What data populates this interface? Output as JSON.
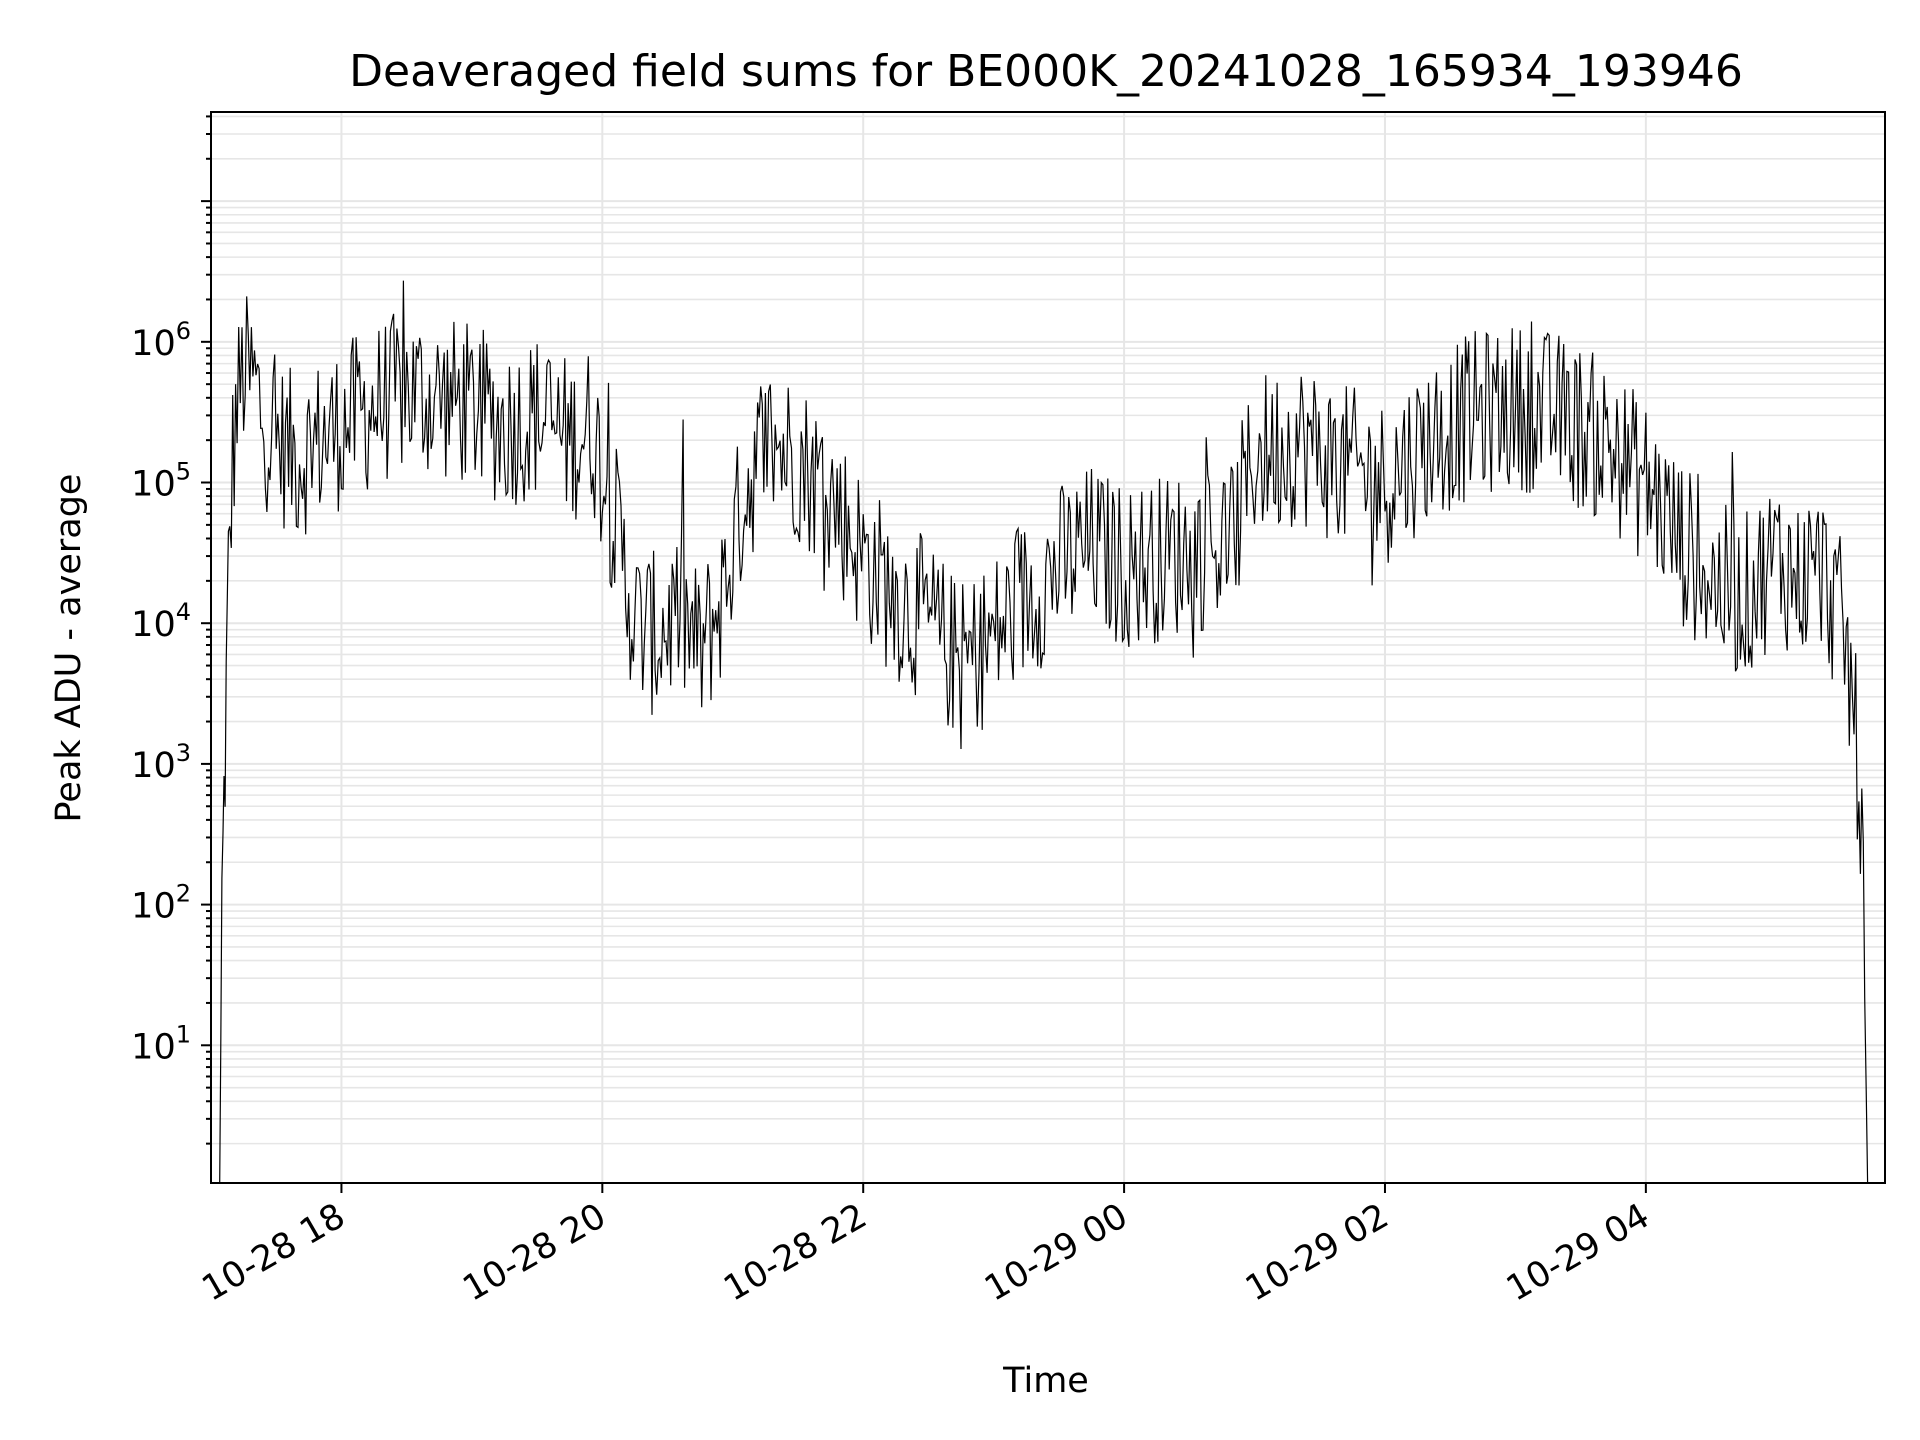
{
  "chart_data": {
    "type": "line",
    "title": "Deaveraged field sums for BE000K_20241028_165934_193946",
    "xlabel": "Time",
    "ylabel": "Peak ADU - average",
    "yscale": "log",
    "grid": true,
    "line_color": "#000000",
    "grid_color": "#e6e6e6",
    "xlim": [
      "2024-10-28 17:00",
      "2024-10-29 05:50"
    ],
    "ylim": [
      1.05,
      43000000
    ],
    "x_ticks": [
      {
        "value": "2024-10-28 18:00",
        "label": "10-28 18"
      },
      {
        "value": "2024-10-28 20:00",
        "label": "10-28 20"
      },
      {
        "value": "2024-10-28 22:00",
        "label": "10-28 22"
      },
      {
        "value": "2024-10-29 00:00",
        "label": "10-29 00"
      },
      {
        "value": "2024-10-29 02:00",
        "label": "10-29 02"
      },
      {
        "value": "2024-10-29 04:00",
        "label": "10-29 04"
      }
    ],
    "y_ticks": [
      {
        "value": 10,
        "base": "10",
        "exp": "1"
      },
      {
        "value": 100,
        "base": "10",
        "exp": "2"
      },
      {
        "value": 1000,
        "base": "10",
        "exp": "3"
      },
      {
        "value": 10000,
        "base": "10",
        "exp": "4"
      },
      {
        "value": 100000,
        "base": "10",
        "exp": "5"
      },
      {
        "value": 1000000,
        "base": "10",
        "exp": "6"
      }
    ],
    "series": [
      {
        "x": [
          "2024-10-28 17:04",
          "2024-10-28 17:05",
          "2024-10-28 17:06",
          "2024-10-28 17:07",
          "2024-10-28 17:08",
          "2024-10-28 17:10",
          "2024-10-28 17:12",
          "2024-10-28 17:15",
          "2024-10-28 17:20",
          "2024-10-28 17:25",
          "2024-10-28 17:30",
          "2024-10-28 17:40",
          "2024-10-28 17:50",
          "2024-10-28 18:00",
          "2024-10-28 18:15",
          "2024-10-28 18:30",
          "2024-10-28 18:45",
          "2024-10-28 19:00",
          "2024-10-28 19:15",
          "2024-10-28 19:30",
          "2024-10-28 19:45",
          "2024-10-28 19:55",
          "2024-10-28 20:05",
          "2024-10-28 20:15",
          "2024-10-28 20:25",
          "2024-10-28 20:35",
          "2024-10-28 20:45",
          "2024-10-28 20:55",
          "2024-10-28 21:05",
          "2024-10-28 21:15",
          "2024-10-28 21:30",
          "2024-10-28 21:45",
          "2024-10-28 22:00",
          "2024-10-28 22:15",
          "2024-10-28 22:30",
          "2024-10-28 22:45",
          "2024-10-28 23:00",
          "2024-10-28 23:15",
          "2024-10-28 23:30",
          "2024-10-28 23:45",
          "2024-10-29 00:00",
          "2024-10-29 00:20",
          "2024-10-29 00:40",
          "2024-10-29 00:50",
          "2024-10-29 01:00",
          "2024-10-29 01:20",
          "2024-10-29 01:40",
          "2024-10-29 02:00",
          "2024-10-29 02:20",
          "2024-10-29 02:40",
          "2024-10-29 03:00",
          "2024-10-29 03:20",
          "2024-10-29 03:40",
          "2024-10-29 04:00",
          "2024-10-29 04:15",
          "2024-10-29 04:30",
          "2024-10-29 04:45",
          "2024-10-29 05:00",
          "2024-10-29 05:10",
          "2024-10-29 05:20",
          "2024-10-29 05:30",
          "2024-10-29 05:35",
          "2024-10-29 05:38",
          "2024-10-29 05:40",
          "2024-10-29 05:42",
          "2024-10-29 05:44"
        ],
        "y": [
          1.05,
          100,
          500,
          3000,
          20000,
          150000,
          350000,
          600000,
          500000,
          250000,
          200000,
          150000,
          200000,
          250000,
          350000,
          450000,
          400000,
          350000,
          250000,
          300000,
          200000,
          250000,
          60000,
          10000,
          8000,
          12000,
          6000,
          15000,
          80000,
          200000,
          150000,
          80000,
          30000,
          15000,
          10000,
          5000,
          8000,
          15000,
          25000,
          35000,
          25000,
          30000,
          35000,
          40000,
          150000,
          200000,
          130000,
          100000,
          200000,
          300000,
          350000,
          300000,
          200000,
          100000,
          40000,
          20000,
          15000,
          30000,
          20000,
          25000,
          10000,
          3000,
          800,
          100,
          1.05,
          1.05
        ]
      }
    ]
  }
}
